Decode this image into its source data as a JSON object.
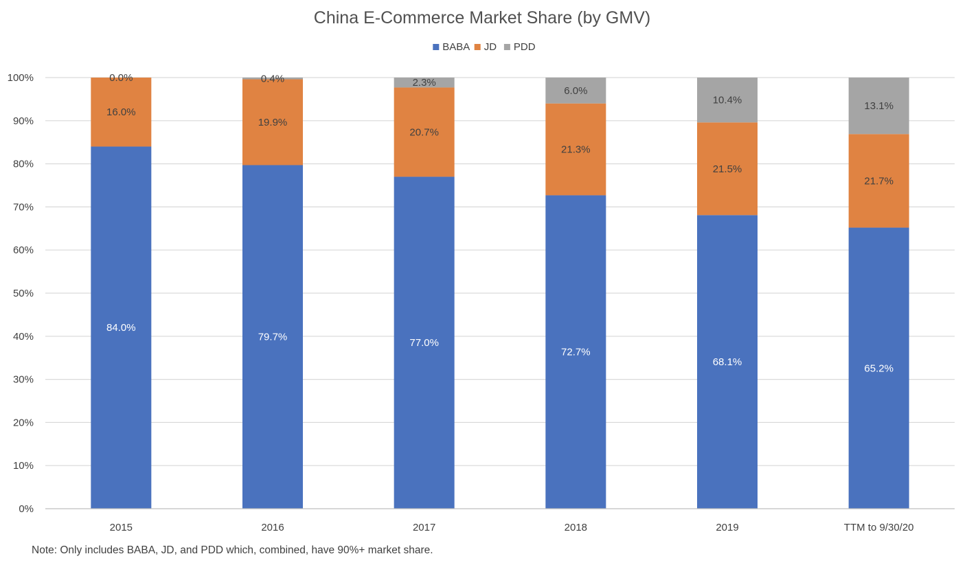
{
  "chart_data": {
    "type": "bar",
    "stacked": true,
    "title": "China E-Commerce Market Share (by GMV)",
    "xlabel": "",
    "ylabel": "",
    "ylim": [
      0,
      100
    ],
    "yticks": [
      0,
      10,
      20,
      30,
      40,
      50,
      60,
      70,
      80,
      90,
      100
    ],
    "ytick_labels": [
      "0%",
      "10%",
      "20%",
      "30%",
      "40%",
      "50%",
      "60%",
      "70%",
      "80%",
      "90%",
      "100%"
    ],
    "grid": true,
    "legend_position": "top-center",
    "categories": [
      "2015",
      "2016",
      "2017",
      "2018",
      "2019",
      "TTM to 9/30/20"
    ],
    "series": [
      {
        "name": "BABA",
        "color": "#4a72be",
        "label_color": "#ffffff",
        "values": [
          84.0,
          79.7,
          77.0,
          72.7,
          68.1,
          65.2
        ],
        "labels": [
          "84.0%",
          "79.7%",
          "77.0%",
          "72.7%",
          "68.1%",
          "65.2%"
        ]
      },
      {
        "name": "JD",
        "color": "#e08342",
        "label_color": "#404040",
        "values": [
          16.0,
          19.9,
          20.7,
          21.3,
          21.5,
          21.7
        ],
        "labels": [
          "16.0%",
          "19.9%",
          "20.7%",
          "21.3%",
          "21.5%",
          "21.7%"
        ]
      },
      {
        "name": "PDD",
        "color": "#a5a5a5",
        "label_color": "#404040",
        "values": [
          0.0,
          0.4,
          2.3,
          6.0,
          10.4,
          13.1
        ],
        "labels": [
          "0.0%",
          "0.4%",
          "2.3%",
          "6.0%",
          "10.4%",
          "13.1%"
        ]
      }
    ],
    "note": "Note: Only includes BABA, JD, and PDD which, combined, have 90%+ market share.",
    "gridline_color": "#d9d9d9",
    "axis_color": "#bfbfbf"
  }
}
